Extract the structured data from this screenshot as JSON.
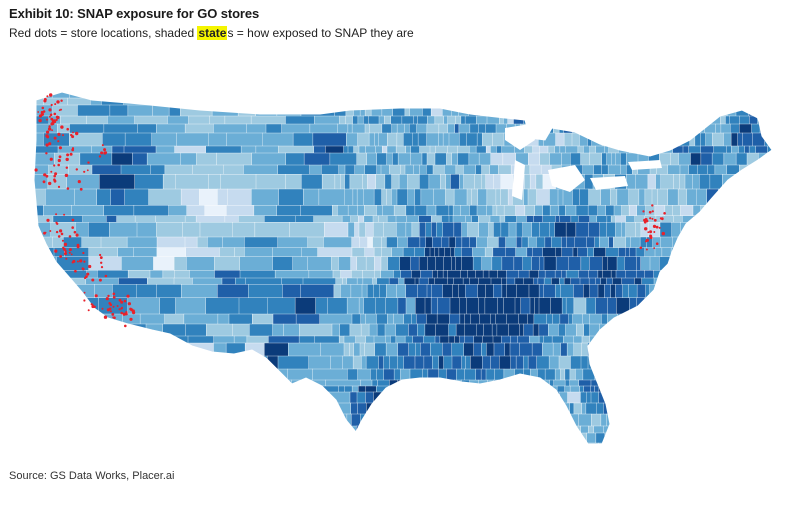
{
  "exhibit": {
    "title": "Exhibit 10: SNAP exposure for GO stores",
    "subtitle_before": "Red dots = store locations, shaded ",
    "subtitle_highlight": "state",
    "subtitle_after": "s = how exposed to SNAP they are",
    "source": "Source: GS Data Works, Placer.ai"
  },
  "map": {
    "region": "contiguous United States, county-level shading",
    "palette": [
      "#e9f2fb",
      "#c6dbef",
      "#9ecae1",
      "#6baed6",
      "#3182bd",
      "#1f5fa8",
      "#0b3b7a"
    ],
    "store_dot_color": "#e8212b",
    "border_color": "#ffffff"
  }
}
